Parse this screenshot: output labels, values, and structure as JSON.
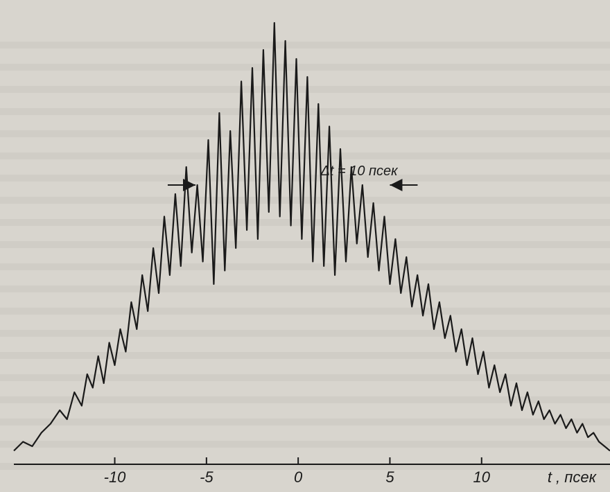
{
  "chart_data": {
    "type": "line",
    "title": "",
    "xlabel": "t , псек",
    "ylabel": "",
    "xlim": [
      -15.5,
      17
    ],
    "ylim": [
      0,
      1
    ],
    "grid": false,
    "legend": "none",
    "x_ticks": [
      -10,
      -5,
      0,
      5,
      10
    ],
    "tick_labels": [
      "-10",
      "-5",
      "0",
      "5",
      "10"
    ],
    "annotation": "Δt = 10 псек",
    "annotation_span": [
      -5.6,
      5.0
    ],
    "series": [
      {
        "x": [
          -15.5,
          -15.0,
          -14.5,
          -14.0,
          -13.5,
          -13.0,
          -12.6,
          -12.2,
          -11.8,
          -11.5,
          -11.2,
          -10.9,
          -10.6,
          -10.3,
          -10.0,
          -9.7,
          -9.4,
          -9.1,
          -8.8,
          -8.5,
          -8.2,
          -7.9,
          -7.6,
          -7.3,
          -7.0,
          -6.7,
          -6.4,
          -6.1,
          -5.8,
          -5.5,
          -5.2,
          -4.9,
          -4.6,
          -4.3,
          -4.0,
          -3.7,
          -3.4,
          -3.1,
          -2.8,
          -2.5,
          -2.2,
          -1.9,
          -1.6,
          -1.3,
          -1.0,
          -0.7,
          -0.4,
          -0.1,
          0.2,
          0.5,
          0.8,
          1.1,
          1.4,
          1.7,
          2.0,
          2.3,
          2.6,
          2.9,
          3.2,
          3.5,
          3.8,
          4.1,
          4.4,
          4.7,
          5.0,
          5.3,
          5.6,
          5.9,
          6.2,
          6.5,
          6.8,
          7.1,
          7.4,
          7.7,
          8.0,
          8.3,
          8.6,
          8.9,
          9.2,
          9.5,
          9.8,
          10.1,
          10.4,
          10.7,
          11.0,
          11.3,
          11.6,
          11.9,
          12.2,
          12.5,
          12.8,
          13.1,
          13.4,
          13.7,
          14.0,
          14.3,
          14.6,
          14.9,
          15.2,
          15.5,
          15.8,
          16.1,
          16.4,
          16.7,
          17.0
        ],
        "y": [
          0.03,
          0.05,
          0.04,
          0.07,
          0.09,
          0.12,
          0.1,
          0.16,
          0.13,
          0.2,
          0.17,
          0.24,
          0.18,
          0.27,
          0.22,
          0.3,
          0.25,
          0.36,
          0.3,
          0.42,
          0.34,
          0.48,
          0.38,
          0.55,
          0.42,
          0.6,
          0.44,
          0.66,
          0.47,
          0.62,
          0.45,
          0.72,
          0.4,
          0.78,
          0.43,
          0.74,
          0.48,
          0.85,
          0.52,
          0.88,
          0.5,
          0.92,
          0.56,
          0.98,
          0.55,
          0.94,
          0.53,
          0.9,
          0.5,
          0.86,
          0.45,
          0.8,
          0.44,
          0.75,
          0.42,
          0.7,
          0.45,
          0.66,
          0.49,
          0.62,
          0.46,
          0.58,
          0.43,
          0.55,
          0.4,
          0.5,
          0.38,
          0.46,
          0.35,
          0.42,
          0.33,
          0.4,
          0.3,
          0.36,
          0.28,
          0.33,
          0.25,
          0.3,
          0.22,
          0.28,
          0.2,
          0.25,
          0.17,
          0.22,
          0.16,
          0.2,
          0.13,
          0.18,
          0.12,
          0.16,
          0.11,
          0.14,
          0.1,
          0.12,
          0.09,
          0.11,
          0.08,
          0.1,
          0.07,
          0.09,
          0.06,
          0.07,
          0.05,
          0.04,
          0.03
        ]
      }
    ]
  }
}
